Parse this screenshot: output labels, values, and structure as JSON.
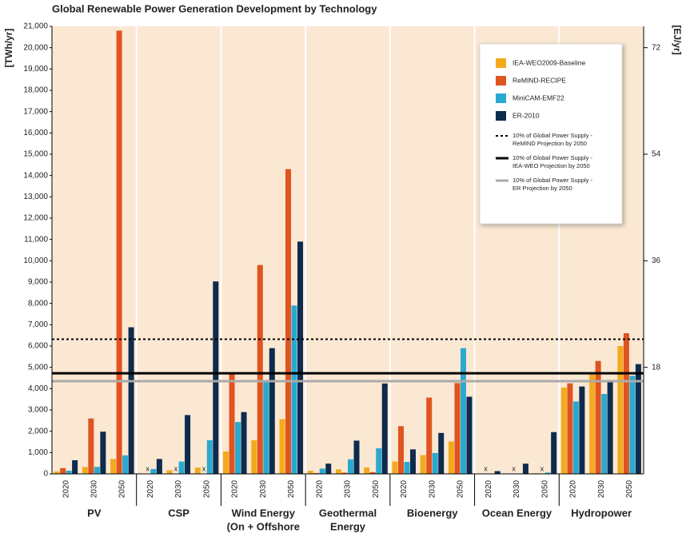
{
  "chart_data": {
    "type": "grouped-bar-facets",
    "title": "Global Renewable Power Generation Development by Technology",
    "y_label": "[TWh/yr]",
    "y2_label": "[EJ/yr]",
    "groups": [
      [
        "PV"
      ],
      [
        "CSP"
      ],
      [
        "Wind Energy",
        "(On + Offshore"
      ],
      [
        "Geothermal",
        "Energy"
      ],
      [
        "Bioenergy"
      ],
      [
        "Ocean Energy"
      ],
      [
        "Hydropower"
      ]
    ],
    "x": [
      "2020",
      "2030",
      "2050"
    ],
    "missing_label": "x",
    "series": [
      {
        "name": "IEA-WEO2009-Baseline",
        "color": "#f4aa1e",
        "values": [
          [
            110,
            320,
            700
          ],
          [
            20,
            170,
            300
          ],
          [
            1050,
            1580,
            2570
          ],
          [
            150,
            210,
            300
          ],
          [
            580,
            880,
            1520
          ],
          [
            5,
            10,
            30
          ],
          [
            4050,
            4650,
            6000
          ]
        ]
      },
      {
        "name": "ReMIND-RECIPE",
        "color": "#e0541f",
        "values": [
          [
            270,
            2600,
            20800
          ],
          [
            null,
            null,
            null
          ],
          [
            4700,
            9800,
            14300
          ],
          [
            40,
            60,
            80
          ],
          [
            2240,
            3580,
            4260
          ],
          [
            null,
            null,
            null
          ],
          [
            4250,
            5300,
            6600
          ]
        ]
      },
      {
        "name": "MiniCAM-EMF22",
        "color": "#2aa9d0",
        "values": [
          [
            150,
            330,
            870
          ],
          [
            230,
            580,
            1580
          ],
          [
            2430,
            4400,
            7900
          ],
          [
            250,
            680,
            1200
          ],
          [
            560,
            980,
            5900
          ],
          [
            20,
            20,
            60
          ],
          [
            3400,
            3750,
            4600
          ]
        ]
      },
      {
        "name": "ER-2010",
        "color": "#0d2b4e",
        "values": [
          [
            640,
            1980,
            6880
          ],
          [
            700,
            2760,
            9030
          ],
          [
            2900,
            5900,
            10900
          ],
          [
            480,
            1560,
            4240
          ],
          [
            1150,
            1920,
            3620
          ],
          [
            130,
            480,
            1960
          ],
          [
            4100,
            4350,
            5150
          ]
        ]
      }
    ],
    "reference_lines": [
      {
        "label": [
          "10% of Global Power Supply -",
          "ReMIND Projection by 2050"
        ],
        "value": 6320,
        "style": "dotted",
        "color": "#000000"
      },
      {
        "label": [
          "10% of Global Power Supply -",
          "IEA-WEO Projection by 2050"
        ],
        "value": 4720,
        "style": "solid",
        "color": "#000000"
      },
      {
        "label": [
          "10% of Global Power Supply -",
          "ER Projection by 2050"
        ],
        "value": 4350,
        "style": "solid",
        "color": "#aaaaaa"
      }
    ],
    "ylim": [
      0,
      21000
    ],
    "yticks": [
      0,
      {
        "value": 1000,
        "label": "1,000"
      },
      {
        "value": 2000,
        "label": "2,000"
      },
      {
        "value": 3000,
        "label": "3,000"
      },
      {
        "value": 4000,
        "label": "4,000"
      },
      {
        "value": 5000,
        "label": "5,000"
      },
      {
        "value": 6000,
        "label": "6,000"
      },
      {
        "value": 7000,
        "label": "7,000"
      },
      {
        "value": 8000,
        "label": "8,000"
      },
      {
        "value": 9000,
        "label": "9,000"
      },
      {
        "value": 10000,
        "label": "10,000"
      },
      {
        "value": 11000,
        "label": "11,000"
      },
      {
        "value": 12000,
        "label": "12,000"
      },
      {
        "value": 13000,
        "label": "13,000"
      },
      {
        "value": 14000,
        "label": "14,000"
      },
      {
        "value": 15000,
        "label": "15,000"
      },
      {
        "value": 16000,
        "label": "16,000"
      },
      {
        "value": 17000,
        "label": "17,000"
      },
      {
        "value": 18000,
        "label": "18,000"
      },
      {
        "value": 19000,
        "label": "19,000"
      },
      {
        "value": 20000,
        "label": "20,000"
      },
      {
        "value": 21000,
        "label": "21,000"
      }
    ],
    "y2lim": [
      0,
      75.6
    ],
    "y2ticks": [
      18,
      36,
      54,
      72
    ]
  }
}
